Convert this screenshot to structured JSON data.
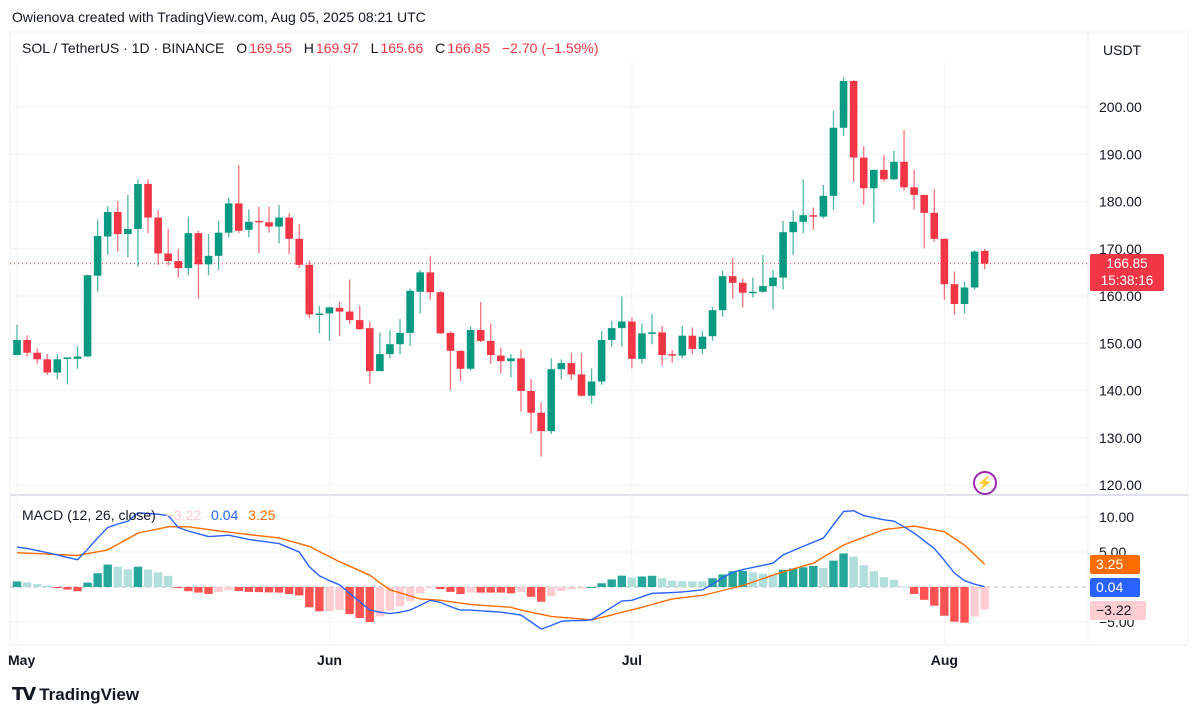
{
  "header": {
    "credit": "Owienova created with TradingView.com, Aug 05, 2025 08:21 UTC"
  },
  "legend": {
    "symbol": "SOL / TetherUS · 1D · BINANCE",
    "o_label": "O",
    "o": "169.55",
    "h_label": "H",
    "h": "169.97",
    "l_label": "L",
    "l": "165.66",
    "c_label": "C",
    "c": "166.85",
    "change": "−2.70 (−1.59%)"
  },
  "currency": "USDT",
  "last_price": {
    "price": "166.85",
    "countdown": "15:38:16"
  },
  "macd_legend": {
    "title": "MACD (12, 26, close)",
    "hist": "−3.22",
    "macd": "0.04",
    "signal": "3.25"
  },
  "macd_badges": {
    "signal": "3.25",
    "macd": "0.04",
    "hist": "−3.22"
  },
  "footer": {
    "brand": "TradingView"
  },
  "colors": {
    "up": "#089981",
    "down": "#f23645",
    "macd": "#2962ff",
    "signal": "#ff6d00",
    "hist_up_strong": "#26a69a",
    "hist_up_weak": "#b2dfdb",
    "hist_down_strong": "#ff5252",
    "hist_down_weak": "#ffcdd2",
    "lightning": "#9c27b0"
  },
  "chart_data": [
    {
      "type": "candlestick",
      "title": "SOL / TetherUS · 1D · BINANCE",
      "x_start": "2025-05-01",
      "x_end": "2025-08-05",
      "x_tick_labels": [
        "May",
        "Jun",
        "Jul",
        "Aug"
      ],
      "x_tick_index": [
        0,
        31,
        61,
        92
      ],
      "y_ticks": [
        120,
        130,
        140,
        150,
        160,
        170,
        180,
        190,
        200
      ],
      "y_tick_labels": [
        "120.00",
        "130.00",
        "140.00",
        "150.00",
        "160.00",
        "170.00",
        "180.00",
        "190.00",
        "200.00"
      ],
      "ylim": [
        118,
        216
      ],
      "grid": true,
      "ohlc": [
        [
          147.5,
          153.9,
          147.5,
          150.7
        ],
        [
          150.7,
          151.7,
          147.2,
          148.0
        ],
        [
          148.0,
          148.9,
          145.7,
          146.6
        ],
        [
          146.6,
          147.7,
          143.3,
          143.8
        ],
        [
          143.8,
          147.7,
          142.4,
          146.6
        ],
        [
          146.7,
          147.0,
          141.3,
          147.0
        ],
        [
          146.7,
          149.4,
          144.6,
          147.2
        ],
        [
          147.2,
          164.5,
          147.1,
          164.4
        ],
        [
          164.3,
          176.2,
          160.9,
          172.7
        ],
        [
          172.6,
          179.0,
          168.7,
          177.8
        ],
        [
          177.8,
          180.1,
          169.4,
          173.1
        ],
        [
          173.1,
          181.4,
          168.2,
          174.2
        ],
        [
          174.2,
          184.7,
          166.2,
          183.7
        ],
        [
          183.7,
          184.7,
          173.3,
          176.6
        ],
        [
          176.6,
          178.2,
          166.6,
          169.0
        ],
        [
          169.0,
          174.2,
          166.4,
          167.4
        ],
        [
          167.4,
          169.9,
          163.9,
          165.9
        ],
        [
          165.9,
          176.8,
          164.4,
          173.3
        ],
        [
          173.3,
          173.8,
          159.4,
          166.7
        ],
        [
          166.7,
          173.1,
          164.4,
          168.5
        ],
        [
          168.5,
          175.9,
          165.5,
          173.4
        ],
        [
          173.4,
          180.8,
          172.4,
          179.6
        ],
        [
          179.6,
          187.7,
          173.3,
          173.8
        ],
        [
          174.0,
          178.3,
          172.4,
          175.7
        ],
        [
          175.9,
          178.9,
          169.0,
          175.7
        ],
        [
          175.6,
          178.9,
          173.4,
          174.7
        ],
        [
          174.7,
          179.3,
          171.1,
          176.6
        ],
        [
          176.6,
          177.5,
          168.9,
          172.1
        ],
        [
          172.1,
          175.2,
          165.9,
          166.6
        ],
        [
          166.6,
          167.5,
          155.3,
          156.1
        ],
        [
          156.1,
          157.9,
          152.1,
          156.3
        ],
        [
          156.3,
          157.7,
          150.5,
          157.6
        ],
        [
          157.5,
          158.8,
          151.5,
          156.7
        ],
        [
          156.7,
          163.5,
          154.1,
          154.9
        ],
        [
          154.9,
          157.9,
          152.8,
          153.0
        ],
        [
          153.2,
          154.6,
          141.4,
          144.1
        ],
        [
          144.1,
          152.2,
          144.1,
          147.7
        ],
        [
          147.7,
          152.8,
          146.8,
          149.8
        ],
        [
          149.8,
          155.1,
          147.7,
          152.2
        ],
        [
          152.2,
          161.6,
          149.4,
          161.1
        ],
        [
          160.9,
          165.5,
          156.3,
          165.0
        ],
        [
          165.0,
          168.5,
          159.2,
          160.8
        ],
        [
          160.8,
          161.1,
          152.0,
          152.1
        ],
        [
          152.2,
          152.5,
          140.1,
          148.4
        ],
        [
          148.4,
          148.5,
          142.0,
          144.6
        ],
        [
          144.6,
          153.5,
          144.2,
          152.8
        ],
        [
          152.8,
          158.7,
          150.2,
          150.5
        ],
        [
          150.5,
          154.2,
          145.6,
          147.5
        ],
        [
          147.4,
          149.1,
          143.6,
          146.2
        ],
        [
          146.2,
          147.7,
          142.8,
          146.8
        ],
        [
          146.8,
          148.7,
          135.5,
          139.9
        ],
        [
          139.9,
          142.4,
          130.9,
          135.3
        ],
        [
          135.3,
          137.5,
          126.0,
          131.4
        ],
        [
          131.4,
          146.8,
          130.8,
          144.5
        ],
        [
          144.5,
          146.6,
          142.4,
          145.8
        ],
        [
          145.8,
          147.9,
          142.2,
          143.4
        ],
        [
          143.4,
          147.9,
          138.7,
          138.9
        ],
        [
          138.9,
          144.7,
          137.2,
          141.9
        ],
        [
          141.9,
          152.6,
          141.2,
          150.7
        ],
        [
          150.7,
          154.7,
          149.3,
          153.2
        ],
        [
          153.2,
          159.9,
          149.3,
          154.6
        ],
        [
          154.6,
          155.5,
          144.7,
          146.7
        ],
        [
          146.7,
          154.2,
          145.7,
          152.1
        ],
        [
          152.1,
          156.2,
          149.8,
          152.3
        ],
        [
          152.3,
          153.7,
          145.2,
          147.5
        ],
        [
          147.7,
          148.6,
          145.9,
          147.4
        ],
        [
          147.4,
          153.7,
          146.8,
          151.6
        ],
        [
          151.6,
          153.3,
          147.7,
          148.8
        ],
        [
          148.8,
          152.6,
          147.7,
          151.4
        ],
        [
          151.5,
          157.7,
          150.5,
          157.0
        ],
        [
          157.0,
          165.4,
          155.6,
          164.2
        ],
        [
          164.2,
          168.1,
          159.5,
          162.8
        ],
        [
          162.8,
          163.7,
          157.6,
          160.7
        ],
        [
          160.7,
          163.9,
          159.7,
          160.9
        ],
        [
          160.9,
          168.7,
          160.7,
          162.1
        ],
        [
          162.1,
          165.5,
          157.2,
          163.9
        ],
        [
          163.9,
          175.9,
          161.4,
          173.5
        ],
        [
          173.5,
          178.1,
          168.7,
          175.7
        ],
        [
          175.7,
          184.7,
          173.3,
          177.1
        ],
        [
          177.1,
          178.7,
          174.0,
          176.8
        ],
        [
          176.8,
          183.5,
          176.4,
          181.2
        ],
        [
          181.2,
          199.2,
          178.3,
          195.6
        ],
        [
          195.6,
          206.3,
          193.9,
          205.5
        ],
        [
          205.5,
          205.7,
          184.1,
          189.3
        ],
        [
          189.3,
          191.7,
          179.3,
          182.8
        ],
        [
          182.8,
          186.7,
          175.5,
          186.7
        ],
        [
          186.7,
          189.8,
          184.2,
          184.7
        ],
        [
          184.7,
          190.7,
          184.5,
          188.4
        ],
        [
          188.4,
          195.1,
          182.3,
          183.0
        ],
        [
          183.0,
          186.7,
          178.3,
          181.4
        ],
        [
          181.4,
          181.4,
          170.1,
          177.6
        ],
        [
          177.6,
          182.6,
          171.5,
          172.1
        ],
        [
          172.1,
          172.1,
          159.2,
          162.5
        ],
        [
          162.5,
          165.2,
          156.0,
          158.3
        ],
        [
          158.3,
          163.0,
          156.3,
          161.8
        ],
        [
          161.8,
          169.7,
          161.3,
          169.4
        ],
        [
          169.55,
          169.97,
          165.66,
          166.85
        ]
      ],
      "last_price": 166.85
    },
    {
      "type": "line+histogram",
      "title": "MACD (12, 26, close)",
      "y_ticks": [
        -5,
        5,
        10
      ],
      "y_tick_labels": [
        "−5.00",
        "5.00",
        "10.00"
      ],
      "ylim": [
        -8.3,
        13.1
      ],
      "series": [
        {
          "name": "MACD",
          "values": [
            5.7,
            5.5,
            5.2,
            4.9,
            4.6,
            4.2,
            3.9,
            5.4,
            7.0,
            8.5,
            9.0,
            9.4,
            10.6,
            10.5,
            10.4,
            10.2,
            8.5,
            8.0,
            7.6,
            7.2,
            7.3,
            7.4,
            7.1,
            6.8,
            6.6,
            6.4,
            6.2,
            5.6,
            5.0,
            2.9,
            1.6,
            0.9,
            0.3,
            -0.9,
            -2.1,
            -3.3,
            -3.6,
            -3.8,
            -3.6,
            -3.3,
            -2.6,
            -1.9,
            -2.2,
            -2.8,
            -3.3,
            -3.3,
            -3.4,
            -3.5,
            -3.6,
            -3.8,
            -4.0,
            -5.0,
            -6.0,
            -5.5,
            -4.9,
            -4.8,
            -4.8,
            -4.7,
            -3.8,
            -2.9,
            -2.0,
            -1.9,
            -1.4,
            -0.9,
            -0.85,
            -0.8,
            -0.7,
            -0.55,
            -0.4,
            0.4,
            1.3,
            2.1,
            2.5,
            2.8,
            3.1,
            3.4,
            4.6,
            5.2,
            5.8,
            6.4,
            7.0,
            8.9,
            10.8,
            10.9,
            10.2,
            9.9,
            9.6,
            9.4,
            8.6,
            7.7,
            6.6,
            5.5,
            3.8,
            2.0,
            0.9,
            0.4,
            0.04
          ]
        },
        {
          "name": "Signal",
          "values": [
            4.9,
            4.83,
            4.77,
            4.7,
            4.63,
            4.57,
            4.5,
            4.77,
            5.03,
            5.3,
            6.1,
            6.9,
            7.7,
            8.0,
            8.3,
            8.6,
            8.6,
            8.6,
            8.4,
            8.2,
            8.0,
            7.83,
            7.67,
            7.5,
            7.33,
            7.17,
            7.0,
            6.6,
            6.2,
            5.8,
            5.07,
            4.33,
            3.6,
            2.97,
            2.33,
            1.7,
            0.6,
            -0.4,
            -0.83,
            -1.27,
            -1.7,
            -1.8,
            -1.9,
            -2.1,
            -2.3,
            -2.5,
            -2.6,
            -2.7,
            -2.8,
            -2.9,
            -3.3,
            -3.6,
            -3.9,
            -4.2,
            -4.33,
            -4.45,
            -4.58,
            -4.7,
            -4.34,
            -3.98,
            -3.62,
            -3.26,
            -2.9,
            -2.5,
            -2.1,
            -1.7,
            -1.53,
            -1.37,
            -1.2,
            -0.85,
            -0.5,
            -0.15,
            0.2,
            0.7,
            1.2,
            1.7,
            2.13,
            2.55,
            2.98,
            3.4,
            4.27,
            5.13,
            6.0,
            6.55,
            7.1,
            7.65,
            8.2,
            8.37,
            8.53,
            8.7,
            8.43,
            8.17,
            7.9,
            6.95,
            6.0,
            4.63,
            3.25
          ]
        }
      ],
      "histogram": "MACD − Signal"
    }
  ]
}
